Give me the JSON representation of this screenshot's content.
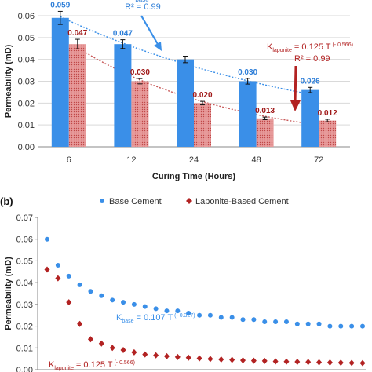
{
  "chart_data": [
    {
      "type": "bar",
      "ylabel": "Permeability (mD)",
      "xlabel": "Curing Time (Hours)",
      "categories": [
        "6",
        "12",
        "24",
        "48",
        "72"
      ],
      "ylim": [
        0,
        0.06
      ],
      "yticks": [
        "0.00",
        "0.01",
        "0.02",
        "0.03",
        "0.04",
        "0.05",
        "0.06"
      ],
      "grid": true,
      "series": [
        {
          "values": [
            0.059,
            0.047,
            0.04,
            0.03,
            0.026
          ],
          "errors": [
            0.003,
            0.002,
            0.0015,
            0.0013,
            0.0012
          ],
          "labels": [
            "0.059",
            "0.047",
            "",
            "0.030",
            "0.026"
          ],
          "color": "#3a8fe8",
          "fit": {
            "a": 0.107,
            "b": -0.327
          }
        },
        {
          "values": [
            0.047,
            0.03,
            0.02,
            0.013,
            0.012
          ],
          "errors": [
            0.0022,
            0.0012,
            0.0008,
            0.0006,
            0.0006
          ],
          "labels": [
            "0.047",
            "0.030",
            "0.020",
            "0.013",
            "0.012"
          ],
          "color": "#c85a5a",
          "fit": {
            "a": 0.125,
            "b": -0.566
          }
        }
      ],
      "annotations": [
        {
          "text": "R² = 0.99",
          "color": "#2f7fd8"
        },
        {
          "text": "K",
          "sub": "laponite",
          "rest": " = 0.125 T",
          "sup": "(- 0.566)",
          "color": "#b22222"
        },
        {
          "text": "R² = 0.99",
          "color": "#b22222"
        },
        {
          "text": "base",
          "color": "#2f7fd8"
        }
      ]
    },
    {
      "type": "scatter",
      "panel_label": "(b)",
      "ylabel": "Permeability (mD)",
      "ylim": [
        0,
        0.07
      ],
      "yticks": [
        "0.00",
        "0.01",
        "0.02",
        "0.03",
        "0.04",
        "0.05",
        "0.06",
        "0.07"
      ],
      "legend_position": "top",
      "x": [
        1,
        2,
        3,
        4,
        5,
        6,
        7,
        8,
        9,
        10,
        11,
        12,
        13,
        14,
        15,
        16,
        17,
        18,
        19,
        20,
        21,
        22,
        23,
        24,
        25,
        26,
        27,
        28,
        29,
        30
      ],
      "series": [
        {
          "name": "Base Cement",
          "marker": "circle",
          "color": "#3a8fe8",
          "values": [
            0.06,
            0.048,
            0.043,
            0.039,
            0.036,
            0.034,
            0.032,
            0.031,
            0.03,
            0.029,
            0.028,
            0.027,
            0.027,
            0.026,
            0.025,
            0.025,
            0.024,
            0.024,
            0.023,
            0.023,
            0.022,
            0.022,
            0.022,
            0.021,
            0.021,
            0.021,
            0.02,
            0.02,
            0.02,
            0.02
          ]
        },
        {
          "name": "Laponite-Based Cement",
          "marker": "diamond",
          "color": "#b22222",
          "values": [
            0.046,
            0.042,
            0.031,
            0.021,
            0.014,
            0.012,
            0.01,
            0.009,
            0.008,
            0.007,
            0.0066,
            0.0062,
            0.0058,
            0.0055,
            0.0052,
            0.0049,
            0.0047,
            0.0045,
            0.0043,
            0.0041,
            0.004,
            0.0038,
            0.0037,
            0.0036,
            0.0035,
            0.0034,
            0.0033,
            0.0032,
            0.0031,
            0.003
          ]
        }
      ],
      "annotations": [
        {
          "text": "K",
          "sub": "base",
          "rest": " = 0.107 T",
          "sup": "(- 0.327)",
          "color": "#3a8fe8"
        },
        {
          "text": "K",
          "sub": "laponite",
          "rest": " = 0.125 T",
          "sup": "(- 0.566)",
          "color": "#b22222"
        }
      ]
    }
  ]
}
